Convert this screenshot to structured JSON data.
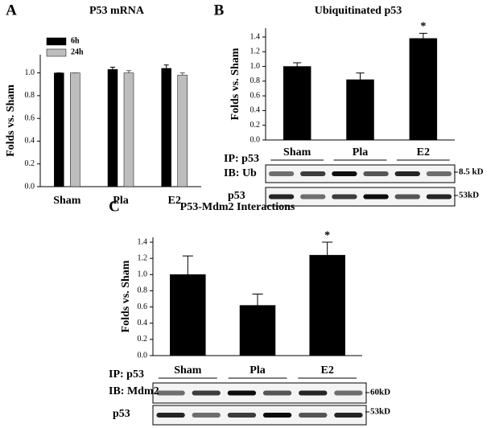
{
  "chart_data": [
    {
      "type": "bar",
      "panel": "A",
      "title": "P53 mRNA",
      "ylabel": "Folds vs. Sham",
      "categories": [
        "Sham",
        "Pla",
        "E2"
      ],
      "series": [
        {
          "name": "6h",
          "color": "#000000",
          "values": [
            1.0,
            1.03,
            1.04
          ],
          "errors": [
            0,
            0.02,
            0.03
          ]
        },
        {
          "name": "24h",
          "color": "#bdbdbd",
          "values": [
            1.0,
            1.0,
            0.98
          ],
          "errors": [
            0,
            0.02,
            0.02
          ]
        }
      ],
      "ylim": [
        0,
        1.16
      ],
      "yticks": [
        {
          "value": 0,
          "label": "0.0"
        },
        0.2,
        0.4,
        0.6,
        0.8,
        {
          "value": 1,
          "label": "1.0"
        }
      ]
    },
    {
      "type": "bar",
      "panel": "B",
      "title": "Ubiquitinated p53",
      "ylabel": "Folds vs. Sham",
      "categories": [
        "Sham",
        "Pla",
        "E2"
      ],
      "color": "#000000",
      "values": [
        1.0,
        0.82,
        1.38
      ],
      "errors": [
        0.05,
        0.09,
        0.07
      ],
      "annotation": "*",
      "ylim": [
        0,
        1.52
      ],
      "yticks": [
        {
          "value": 0,
          "label": "0.0"
        },
        0.2,
        0.4,
        0.6,
        0.8,
        {
          "value": 1,
          "label": "1.0"
        },
        1.2,
        1.4
      ],
      "blot_labels": [
        "IP: p53",
        "IB: Ub",
        "p53"
      ],
      "blot_markers": [
        "8.5 kD",
        "53kD"
      ]
    },
    {
      "type": "bar",
      "panel": "C",
      "title": "P53-Mdm2 Interactions",
      "ylabel": "Folds vs. Sham",
      "categories": [
        "Sham",
        "Pla",
        "E2"
      ],
      "color": "#000000",
      "values": [
        1.0,
        0.62,
        1.24
      ],
      "errors": [
        0.23,
        0.14,
        0.16
      ],
      "annotation": "*",
      "ylim": [
        0,
        1.46
      ],
      "yticks": [
        {
          "value": 0,
          "label": "0.0"
        },
        0.2,
        0.4,
        0.6,
        0.8,
        {
          "value": 1,
          "label": "1.0"
        },
        1.2,
        1.4
      ],
      "blot_labels": [
        "IP: p53",
        "IB: Mdm2",
        "p53"
      ],
      "blot_markers": [
        "60kD",
        "53kD"
      ]
    }
  ]
}
